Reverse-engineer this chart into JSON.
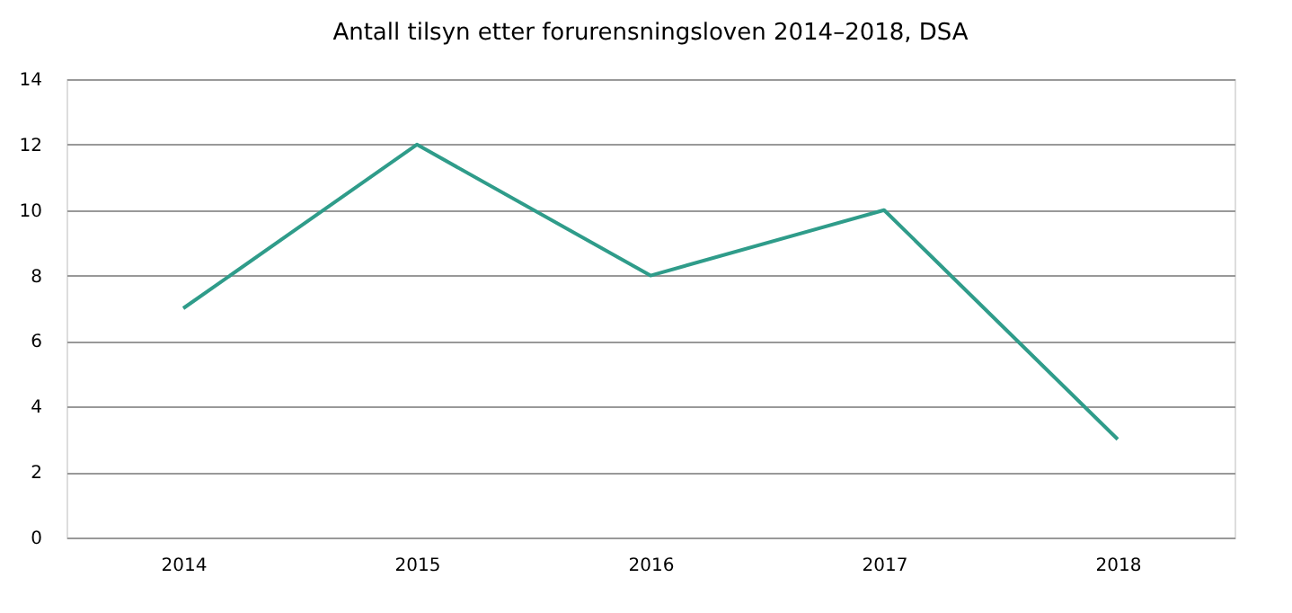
{
  "chart_data": {
    "type": "line",
    "title": "Antall tilsyn etter forurensningsloven 2014–2018, DSA",
    "categories": [
      "2014",
      "2015",
      "2016",
      "2017",
      "2018"
    ],
    "series": [
      {
        "color": "#2f9c8a",
        "values": [
          7,
          12,
          8,
          10,
          3
        ]
      }
    ],
    "ylim": [
      0,
      14
    ],
    "yticks": [
      0,
      2,
      4,
      6,
      8,
      10,
      12,
      14
    ],
    "grid": "y",
    "marker": "none",
    "line_style": "solid"
  }
}
